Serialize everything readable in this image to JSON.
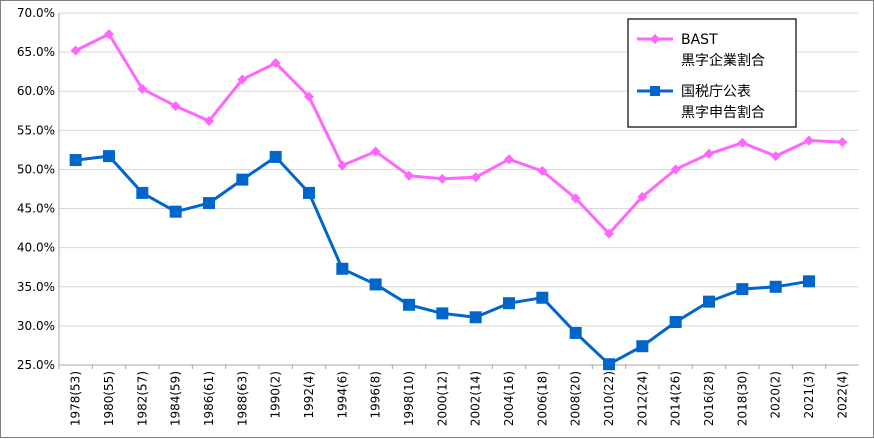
{
  "chart_data": {
    "type": "line",
    "title": "",
    "xlabel": "",
    "ylabel": "",
    "ylim": [
      25,
      70
    ],
    "y_ticks": [
      "25.0%",
      "30.0%",
      "35.0%",
      "40.0%",
      "45.0%",
      "50.0%",
      "55.0%",
      "60.0%",
      "65.0%",
      "70.0%"
    ],
    "categories": [
      "1978(53)",
      "1980(55)",
      "1982(57)",
      "1984(59)",
      "1986(61)",
      "1988(63)",
      "1990(2)",
      "1992(4)",
      "1994(6)",
      "1996(8)",
      "1998(10)",
      "2000(12)",
      "2002(14)",
      "2004(16)",
      "2006(18)",
      "2008(20)",
      "2010(22)",
      "2012(24)",
      "2014(26)",
      "2016(28)",
      "2018(30)",
      "2020(2)",
      "2021(3)",
      "2022(4)"
    ],
    "grid": true,
    "legend_position": "top-right",
    "series": [
      {
        "name": "BAST 黒字企業割合",
        "legend_lines": [
          "BAST",
          "黒字企業割合"
        ],
        "color": "#ff66ff",
        "marker": "diamond",
        "values": [
          65.2,
          67.3,
          60.3,
          58.1,
          56.2,
          61.5,
          63.6,
          59.3,
          50.5,
          52.3,
          49.2,
          48.8,
          49.0,
          51.3,
          49.8,
          46.3,
          41.8,
          46.5,
          50.0,
          52.0,
          53.4,
          51.7,
          53.7,
          53.5
        ]
      },
      {
        "name": "国税庁公表 黒字申告割合",
        "legend_lines": [
          "国税庁公表",
          "黒字申告割合"
        ],
        "color": "#0066cc",
        "marker": "square",
        "values": [
          51.2,
          51.7,
          47.0,
          44.6,
          45.7,
          48.7,
          51.6,
          47.0,
          37.3,
          35.3,
          32.7,
          31.6,
          31.1,
          32.9,
          33.6,
          29.1,
          25.1,
          27.4,
          30.5,
          33.1,
          34.7,
          35.0,
          35.7,
          null
        ]
      }
    ]
  }
}
